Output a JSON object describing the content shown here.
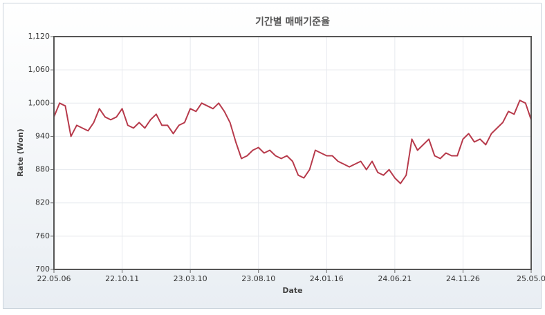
{
  "chart_data": {
    "type": "line",
    "title": "기간별 매매기준율",
    "x_label": "Date",
    "y_label": "Rate (Won)",
    "categories": [
      "22.05.06",
      null,
      null,
      null,
      null,
      null,
      null,
      null,
      null,
      null,
      null,
      null,
      "22.10.11",
      null,
      null,
      null,
      null,
      null,
      null,
      null,
      null,
      null,
      null,
      null,
      "23.03.10",
      null,
      null,
      null,
      null,
      null,
      null,
      null,
      null,
      null,
      null,
      null,
      "23.08.10",
      null,
      null,
      null,
      null,
      null,
      null,
      null,
      null,
      null,
      null,
      null,
      "24.01.16",
      null,
      null,
      null,
      null,
      null,
      null,
      null,
      null,
      null,
      null,
      null,
      "24.06.21",
      null,
      null,
      null,
      null,
      null,
      null,
      null,
      null,
      null,
      null,
      null,
      "24.11.26",
      null,
      null,
      null,
      null,
      null,
      null,
      null,
      null,
      null,
      null,
      null,
      "25.05.0"
    ],
    "values": [
      975,
      1000,
      995,
      940,
      960,
      955,
      950,
      965,
      990,
      975,
      970,
      975,
      990,
      960,
      955,
      965,
      955,
      970,
      980,
      960,
      960,
      945,
      960,
      965,
      990,
      985,
      1000,
      995,
      990,
      1000,
      985,
      965,
      930,
      900,
      905,
      915,
      920,
      910,
      915,
      905,
      900,
      905,
      895,
      870,
      865,
      880,
      915,
      910,
      905,
      905,
      895,
      890,
      885,
      890,
      895,
      880,
      895,
      875,
      870,
      880,
      865,
      855,
      870,
      935,
      915,
      925,
      935,
      905,
      900,
      910,
      905,
      905,
      935,
      945,
      930,
      935,
      925,
      945,
      955,
      965,
      985,
      980,
      1005,
      1000,
      970
    ],
    "color": "#b73a4b",
    "ylim": [
      700,
      1120
    ],
    "yticks": [
      700,
      760,
      820,
      880,
      940,
      {
        "value": 1000,
        "label": "1,000"
      },
      {
        "value": 1060,
        "label": "1,060"
      },
      {
        "value": 1120,
        "label": "1,120"
      }
    ],
    "grid": true
  }
}
